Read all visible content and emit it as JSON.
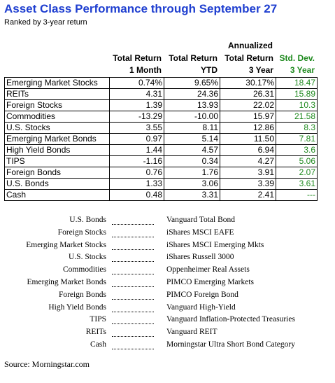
{
  "title": "Asset Class Performance through September 27",
  "subtitle": "Ranked by 3-year return",
  "table": {
    "header_top": "Annualized",
    "headers": [
      [
        "Total Return",
        "1 Month"
      ],
      [
        "Total Return",
        "YTD"
      ],
      [
        "Total Return",
        "3 Year"
      ],
      [
        "Std. Dev.",
        "3 Year"
      ]
    ],
    "rows": [
      [
        "Emerging Market Stocks",
        "0.74%",
        "9.65%",
        "30.17%",
        "18.47"
      ],
      [
        "REITs",
        "4.31",
        "24.36",
        "26.31",
        "15.89"
      ],
      [
        "Foreign Stocks",
        "1.39",
        "13.93",
        "22.02",
        "10.3"
      ],
      [
        "Commodities",
        "-13.29",
        "-10.00",
        "15.97",
        "21.58"
      ],
      [
        "U.S. Stocks",
        "3.55",
        "8.11",
        "12.86",
        "8.3"
      ],
      [
        "Emerging Market Bonds",
        "0.97",
        "5.14",
        "11.50",
        "7.81"
      ],
      [
        "High Yield Bonds",
        "1.44",
        "4.57",
        "6.94",
        "3.6"
      ],
      [
        "TIPS",
        "-1.16",
        "0.34",
        "4.27",
        "5.06"
      ],
      [
        "Foreign Bonds",
        "0.76",
        "1.76",
        "3.91",
        "2.07"
      ],
      [
        "U.S. Bonds",
        "1.33",
        "3.06",
        "3.39",
        "3.61"
      ],
      [
        "Cash",
        "0.48",
        "3.31",
        "2.41",
        "---"
      ]
    ]
  },
  "legend": [
    [
      "U.S. Bonds",
      "Vanguard Total Bond"
    ],
    [
      "Foreign Stocks",
      "iShares MSCI EAFE"
    ],
    [
      "Emerging Market Stocks",
      "iShares MSCI Emerging Mkts"
    ],
    [
      "U.S. Stocks",
      "iShares Russell 3000"
    ],
    [
      "Commodities",
      "Oppenheimer Real Assets"
    ],
    [
      "Emerging Market Bonds",
      "PIMCO Emerging Markets"
    ],
    [
      "Foreign Bonds",
      "PIMCO Foreign Bond"
    ],
    [
      "High Yield Bonds",
      "Vanguard High-Yield"
    ],
    [
      "TIPS",
      "Vanguard Inflation-Protected Treasuries"
    ],
    [
      "REITs",
      "Vanguard REIT"
    ],
    [
      "Cash",
      "Morningstar Ultra Short Bond Category"
    ]
  ],
  "source": "Source: Morningstar.com"
}
